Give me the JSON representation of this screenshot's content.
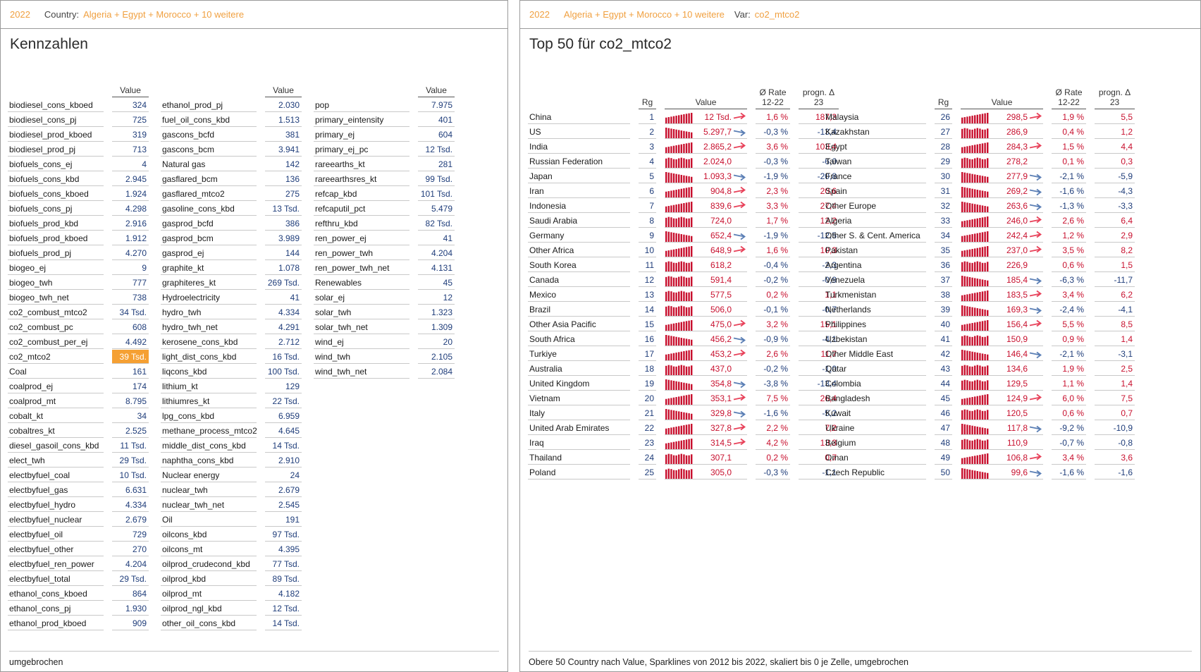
{
  "left_panel": {
    "header": {
      "year": "2022",
      "country_label": "Country:",
      "country_value": "Algeria + Egypt + Morocco + 10 weitere"
    },
    "title": "Kennzahlen",
    "value_header": "Value",
    "columns": [
      [
        [
          "biodiesel_cons_kboed",
          "324"
        ],
        [
          "biodiesel_cons_pj",
          "725"
        ],
        [
          "biodiesel_prod_kboed",
          "319"
        ],
        [
          "biodiesel_prod_pj",
          "713"
        ],
        [
          "biofuels_cons_ej",
          "4"
        ],
        [
          "biofuels_cons_kbd",
          "2.945"
        ],
        [
          "biofuels_cons_kboed",
          "1.924"
        ],
        [
          "biofuels_cons_pj",
          "4.298"
        ],
        [
          "biofuels_prod_kbd",
          "2.916"
        ],
        [
          "biofuels_prod_kboed",
          "1.912"
        ],
        [
          "biofuels_prod_pj",
          "4.270"
        ],
        [
          "biogeo_ej",
          "9"
        ],
        [
          "biogeo_twh",
          "777"
        ],
        [
          "biogeo_twh_net",
          "738"
        ],
        [
          "co2_combust_mtco2",
          "34 Tsd."
        ],
        [
          "co2_combust_pc",
          "608"
        ],
        [
          "co2_combust_per_ej",
          "4.492"
        ],
        [
          "co2_mtco2",
          "39 Tsd."
        ],
        [
          "Coal",
          "161"
        ],
        [
          "coalprod_ej",
          "174"
        ],
        [
          "coalprod_mt",
          "8.795"
        ],
        [
          "cobalt_kt",
          "34"
        ],
        [
          "cobaltres_kt",
          "2.525"
        ],
        [
          "diesel_gasoil_cons_kbd",
          "11 Tsd."
        ],
        [
          "elect_twh",
          "29 Tsd."
        ],
        [
          "electbyfuel_coal",
          "10 Tsd."
        ],
        [
          "electbyfuel_gas",
          "6.631"
        ],
        [
          "electbyfuel_hydro",
          "4.334"
        ],
        [
          "electbyfuel_nuclear",
          "2.679"
        ],
        [
          "electbyfuel_oil",
          "729"
        ],
        [
          "electbyfuel_other",
          "270"
        ],
        [
          "electbyfuel_ren_power",
          "4.204"
        ],
        [
          "electbyfuel_total",
          "29 Tsd."
        ],
        [
          "ethanol_cons_kboed",
          "864"
        ],
        [
          "ethanol_cons_pj",
          "1.930"
        ],
        [
          "ethanol_prod_kboed",
          "909"
        ]
      ],
      [
        [
          "ethanol_prod_pj",
          "2.030"
        ],
        [
          "fuel_oil_cons_kbd",
          "1.513"
        ],
        [
          "gascons_bcfd",
          "381"
        ],
        [
          "gascons_bcm",
          "3.941"
        ],
        [
          "Natural gas",
          "142"
        ],
        [
          "gasflared_bcm",
          "136"
        ],
        [
          "gasflared_mtco2",
          "275"
        ],
        [
          "gasoline_cons_kbd",
          "13 Tsd."
        ],
        [
          "gasprod_bcfd",
          "386"
        ],
        [
          "gasprod_bcm",
          "3.989"
        ],
        [
          "gasprod_ej",
          "144"
        ],
        [
          "graphite_kt",
          "1.078"
        ],
        [
          "graphiteres_kt",
          "269 Tsd."
        ],
        [
          "Hydroelectricity",
          "41"
        ],
        [
          "hydro_twh",
          "4.334"
        ],
        [
          "hydro_twh_net",
          "4.291"
        ],
        [
          "kerosene_cons_kbd",
          "2.712"
        ],
        [
          "light_dist_cons_kbd",
          "16 Tsd."
        ],
        [
          "liqcons_kbd",
          "100 Tsd."
        ],
        [
          "lithium_kt",
          "129"
        ],
        [
          "lithiumres_kt",
          "22 Tsd."
        ],
        [
          "lpg_cons_kbd",
          "6.959"
        ],
        [
          "methane_process_mtco2",
          "4.645"
        ],
        [
          "middle_dist_cons_kbd",
          "14 Tsd."
        ],
        [
          "naphtha_cons_kbd",
          "2.910"
        ],
        [
          "Nuclear energy",
          "24"
        ],
        [
          "nuclear_twh",
          "2.679"
        ],
        [
          "nuclear_twh_net",
          "2.545"
        ],
        [
          "Oil",
          "191"
        ],
        [
          "oilcons_kbd",
          "97 Tsd."
        ],
        [
          "oilcons_mt",
          "4.395"
        ],
        [
          "oilprod_crudecond_kbd",
          "77 Tsd."
        ],
        [
          "oilprod_kbd",
          "89 Tsd."
        ],
        [
          "oilprod_mt",
          "4.182"
        ],
        [
          "oilprod_ngl_kbd",
          "12 Tsd."
        ],
        [
          "other_oil_cons_kbd",
          "14 Tsd."
        ]
      ],
      [
        [
          "pop",
          "7.975"
        ],
        [
          "primary_eintensity",
          "401"
        ],
        [
          "primary_ej",
          "604"
        ],
        [
          "primary_ej_pc",
          "12 Tsd."
        ],
        [
          "rareearths_kt",
          "281"
        ],
        [
          "rareearthsres_kt",
          "99 Tsd."
        ],
        [
          "refcap_kbd",
          "101 Tsd."
        ],
        [
          "refcaputil_pct",
          "5.479"
        ],
        [
          "refthru_kbd",
          "82 Tsd."
        ],
        [
          "ren_power_ej",
          "41"
        ],
        [
          "ren_power_twh",
          "4.204"
        ],
        [
          "ren_power_twh_net",
          "4.131"
        ],
        [
          "Renewables",
          "45"
        ],
        [
          "solar_ej",
          "12"
        ],
        [
          "solar_twh",
          "1.323"
        ],
        [
          "solar_twh_net",
          "1.309"
        ],
        [
          "wind_ej",
          "20"
        ],
        [
          "wind_twh",
          "2.105"
        ],
        [
          "wind_twh_net",
          "2.084"
        ]
      ]
    ],
    "highlighted": "co2_mtco2",
    "footer": "umgebrochen"
  },
  "right_panel": {
    "header": {
      "year": "2022",
      "country_label": "Country:",
      "country_value": "Algeria + Egypt + Morocco + 10 weitere",
      "var_label": "Var:",
      "var_value": "co2_mtco2"
    },
    "title": "Top 50 für co2_mtco2",
    "col_headers": {
      "rank": "Rg",
      "value": "Value",
      "rate_l1": "Ø Rate",
      "rate_l2": "12-22",
      "prog_l1": "progn. Δ",
      "prog_l2": "23"
    },
    "colors": {
      "positive": "#c8102e",
      "negative": "#1f3d7a",
      "arrow_up": "#e8425a",
      "arrow_down": "#5b7fb5",
      "highlight": "#f5a033",
      "header_accent": "#f0a040"
    },
    "rows": [
      [
        "China",
        "1",
        "12 Tsd.",
        "up",
        "1,6 %",
        "187,3"
      ],
      [
        "US",
        "2",
        "5.297,7",
        "down",
        "-0,3 %",
        "-13,4"
      ],
      [
        "India",
        "3",
        "2.865,2",
        "up",
        "3,6 %",
        "103,4"
      ],
      [
        "Russian Federation",
        "4",
        "2.024,0",
        "",
        "-0,3 %",
        "-6,0"
      ],
      [
        "Japan",
        "5",
        "1.093,3",
        "down",
        "-1,9 %",
        "-20,8"
      ],
      [
        "Iran",
        "6",
        "904,8",
        "up",
        "2,3 %",
        "20,6"
      ],
      [
        "Indonesia",
        "7",
        "839,6",
        "up",
        "3,3 %",
        "27,4"
      ],
      [
        "Saudi Arabia",
        "8",
        "724,0",
        "",
        "1,7 %",
        "12,2"
      ],
      [
        "Germany",
        "9",
        "652,4",
        "down",
        "-1,9 %",
        "-12,5"
      ],
      [
        "Other Africa",
        "10",
        "648,9",
        "up",
        "1,6 %",
        "10,3"
      ],
      [
        "South Korea",
        "11",
        "618,2",
        "",
        "-0,4 %",
        "-2,3"
      ],
      [
        "Canada",
        "12",
        "591,4",
        "",
        "-0,2 %",
        "-0,9"
      ],
      [
        "Mexico",
        "13",
        "577,5",
        "",
        "0,2 %",
        "1,1"
      ],
      [
        "Brazil",
        "14",
        "506,0",
        "",
        "-0,1 %",
        "-0,7"
      ],
      [
        "Other Asia Pacific",
        "15",
        "475,0",
        "up",
        "3,2 %",
        "15,1"
      ],
      [
        "South Africa",
        "16",
        "456,2",
        "down",
        "-0,9 %",
        "-4,1"
      ],
      [
        "Turkiye",
        "17",
        "453,2",
        "up",
        "2,6 %",
        "11,7"
      ],
      [
        "Australia",
        "18",
        "437,0",
        "",
        "-0,2 %",
        "-1,0"
      ],
      [
        "United Kingdom",
        "19",
        "354,8",
        "down",
        "-3,8 %",
        "-13,4"
      ],
      [
        "Vietnam",
        "20",
        "353,1",
        "up",
        "7,5 %",
        "26,4"
      ],
      [
        "Italy",
        "21",
        "329,8",
        "down",
        "-1,6 %",
        "-5,2"
      ],
      [
        "United Arab Emirates",
        "22",
        "327,8",
        "up",
        "2,2 %",
        "7,2"
      ],
      [
        "Iraq",
        "23",
        "314,5",
        "up",
        "4,2 %",
        "13,3"
      ],
      [
        "Thailand",
        "24",
        "307,1",
        "",
        "0,2 %",
        "0,7"
      ],
      [
        "Poland",
        "25",
        "305,0",
        "",
        "-0,3 %",
        "-1,1"
      ],
      [
        "Malaysia",
        "26",
        "298,5",
        "up",
        "1,9 %",
        "5,5"
      ],
      [
        "Kazakhstan",
        "27",
        "286,9",
        "",
        "0,4 %",
        "1,2"
      ],
      [
        "Egypt",
        "28",
        "284,3",
        "up",
        "1,5 %",
        "4,4"
      ],
      [
        "Taiwan",
        "29",
        "278,2",
        "",
        "0,1 %",
        "0,3"
      ],
      [
        "France",
        "30",
        "277,9",
        "down",
        "-2,1 %",
        "-5,9"
      ],
      [
        "Spain",
        "31",
        "269,2",
        "down",
        "-1,6 %",
        "-4,3"
      ],
      [
        "Other Europe",
        "32",
        "263,6",
        "down",
        "-1,3 %",
        "-3,3"
      ],
      [
        "Algeria",
        "33",
        "246,0",
        "up",
        "2,6 %",
        "6,4"
      ],
      [
        "Other S. & Cent. America",
        "34",
        "242,4",
        "up",
        "1,2 %",
        "2,9"
      ],
      [
        "Pakistan",
        "35",
        "237,0",
        "up",
        "3,5 %",
        "8,2"
      ],
      [
        "Argentina",
        "36",
        "226,9",
        "",
        "0,6 %",
        "1,5"
      ],
      [
        "Venezuela",
        "37",
        "185,4",
        "down",
        "-6,3 %",
        "-11,7"
      ],
      [
        "Turkmenistan",
        "38",
        "183,5",
        "up",
        "3,4 %",
        "6,2"
      ],
      [
        "Netherlands",
        "39",
        "169,3",
        "down",
        "-2,4 %",
        "-4,1"
      ],
      [
        "Philippines",
        "40",
        "156,4",
        "up",
        "5,5 %",
        "8,5"
      ],
      [
        "Uzbekistan",
        "41",
        "150,9",
        "",
        "0,9 %",
        "1,4"
      ],
      [
        "Other Middle East",
        "42",
        "146,4",
        "down",
        "-2,1 %",
        "-3,1"
      ],
      [
        "Qatar",
        "43",
        "134,6",
        "",
        "1,9 %",
        "2,5"
      ],
      [
        "Colombia",
        "44",
        "129,5",
        "",
        "1,1 %",
        "1,4"
      ],
      [
        "Bangladesh",
        "45",
        "124,9",
        "up",
        "6,0 %",
        "7,5"
      ],
      [
        "Kuwait",
        "46",
        "120,5",
        "",
        "0,6 %",
        "0,7"
      ],
      [
        "Ukraine",
        "47",
        "117,8",
        "down",
        "-9,2 %",
        "-10,9"
      ],
      [
        "Belgium",
        "48",
        "110,9",
        "",
        "-0,7 %",
        "-0,8"
      ],
      [
        "Oman",
        "49",
        "106,8",
        "up",
        "3,4 %",
        "3,6"
      ],
      [
        "Czech Republic",
        "50",
        "99,6",
        "down",
        "-1,6 %",
        "-1,6"
      ]
    ],
    "footer": "Obere 50 Country nach Value, Sparklines von 2012 bis 2022, skaliert bis 0 je Zelle, umgebrochen"
  }
}
